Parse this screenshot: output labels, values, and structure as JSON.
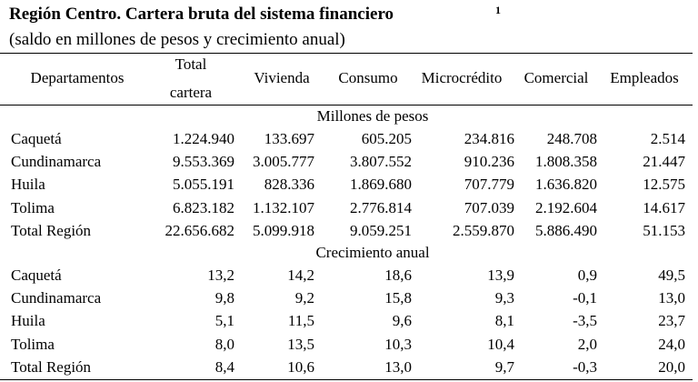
{
  "title": "Región Centro.  Cartera bruta del sistema financiero",
  "title_note": "1",
  "subtitle": "(saldo en millones de pesos y crecimiento anual)",
  "table": {
    "header": [
      "Departamentos",
      "Total cartera",
      "Vivienda",
      "Consumo",
      "Microcrédito",
      "Comercial",
      "Empleados"
    ],
    "sections": [
      {
        "label": "Millones de pesos",
        "rows": [
          [
            "Caquetá",
            "1.224.940",
            "133.697",
            "605.205",
            "234.816",
            "248.708",
            "2.514"
          ],
          [
            "Cundinamarca",
            "9.553.369",
            "3.005.777",
            "3.807.552",
            "910.236",
            "1.808.358",
            "21.447"
          ],
          [
            "Huila",
            "5.055.191",
            "828.336",
            "1.869.680",
            "707.779",
            "1.636.820",
            "12.575"
          ],
          [
            "Tolima",
            "6.823.182",
            "1.132.107",
            "2.776.814",
            "707.039",
            "2.192.604",
            "14.617"
          ],
          [
            "Total Región",
            "22.656.682",
            "5.099.918",
            "9.059.251",
            "2.559.870",
            "5.886.490",
            "51.153"
          ]
        ]
      },
      {
        "label": "Crecimiento anual",
        "rows": [
          [
            "Caquetá",
            "13,2",
            "14,2",
            "18,6",
            "13,9",
            "0,9",
            "49,5"
          ],
          [
            "Cundinamarca",
            "9,8",
            "9,2",
            "15,8",
            "9,3",
            "-0,1",
            "13,0"
          ],
          [
            "Huila",
            "5,1",
            "11,5",
            "9,6",
            "8,1",
            "-3,5",
            "23,7"
          ],
          [
            "Tolima",
            "8,0",
            "13,5",
            "10,3",
            "10,4",
            "2,0",
            "24,0"
          ],
          [
            "Total Región",
            "8,4",
            "10,6",
            "13,0",
            "9,7",
            "-0,3",
            "20,0"
          ]
        ]
      }
    ]
  }
}
